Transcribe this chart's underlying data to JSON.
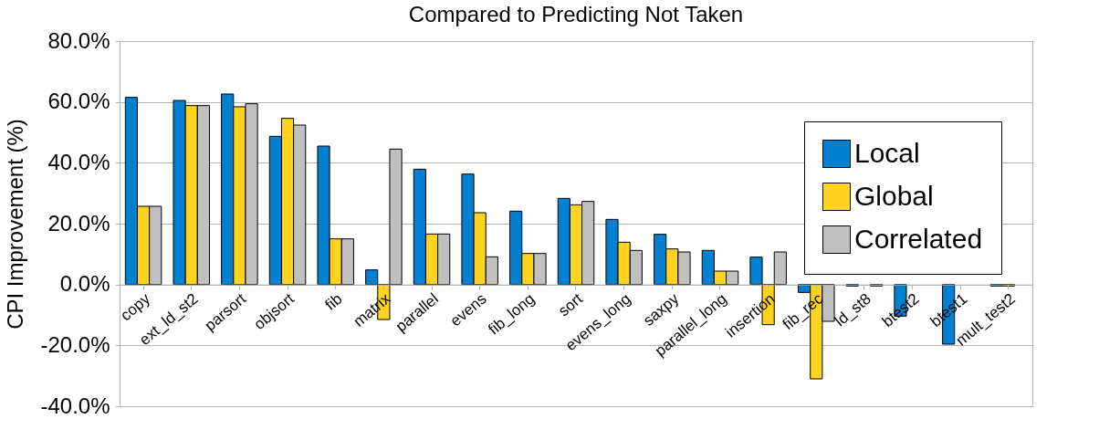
{
  "chart_data": {
    "type": "bar",
    "title": "Compared to Predicting Not Taken",
    "ylabel": "CPI Improvement (%)",
    "categories": [
      "copy",
      "ext_ld_st2",
      "parsort",
      "objsort",
      "fib",
      "matrix",
      "parallel",
      "evens",
      "fib_long",
      "sort",
      "evens_long",
      "saxpy",
      "parallel_long",
      "insertion",
      "fib_rec",
      "ld_st8",
      "btest2",
      "btest1",
      "mult_test2"
    ],
    "series": [
      {
        "name": "Local",
        "color": "#0080d0",
        "values": [
          61.5,
          60.5,
          62.6,
          48.7,
          45.5,
          4.8,
          37.9,
          36.3,
          24.1,
          28.3,
          21.4,
          16.5,
          11.2,
          9.0,
          -2.6,
          -0.5,
          -10.4,
          -19.6,
          -0.5
        ]
      },
      {
        "name": "Global",
        "color": "#ffd320",
        "values": [
          25.7,
          58.8,
          58.4,
          54.6,
          15.0,
          -11.5,
          16.6,
          23.6,
          10.2,
          26.2,
          13.9,
          11.7,
          4.4,
          -13.2,
          -31.0,
          null,
          null,
          null,
          -0.5
        ]
      },
      {
        "name": "Correlated",
        "color": "#c0c0c0",
        "values": [
          25.7,
          58.8,
          59.4,
          52.4,
          15.0,
          44.5,
          16.6,
          9.1,
          10.2,
          27.3,
          11.2,
          10.7,
          4.4,
          10.7,
          -12.1,
          -0.5,
          null,
          null,
          null
        ]
      }
    ],
    "ylim": [
      -40,
      80
    ],
    "yticks": [
      {
        "value": -40,
        "label": "-40.0%"
      },
      {
        "value": -20,
        "label": "-20.0%"
      },
      {
        "value": 0,
        "label": "0.0%"
      },
      {
        "value": 20,
        "label": "20.0%"
      },
      {
        "value": 40,
        "label": "40.0%"
      },
      {
        "value": 60,
        "label": "60.0%"
      },
      {
        "value": 80,
        "label": "80.0%"
      }
    ],
    "grid": "y",
    "legend": "right"
  }
}
